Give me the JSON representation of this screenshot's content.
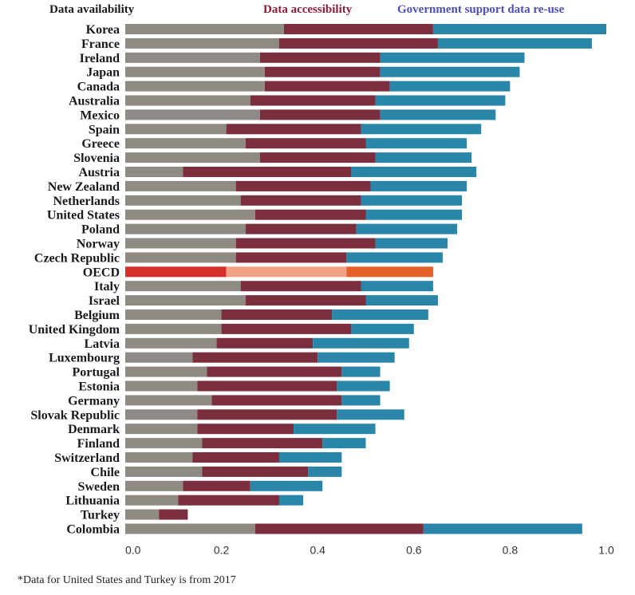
{
  "chart_data": {
    "type": "bar",
    "orientation": "horizontal",
    "stacked": true,
    "categories": [
      "Korea",
      "France",
      "Ireland",
      "Japan",
      "Canada",
      "Australia",
      "Mexico",
      "Spain",
      "Greece",
      "Slovenia",
      "Austria",
      "New Zealand",
      "Netherlands",
      "United States",
      "Poland",
      "Norway",
      "Czech Republic",
      "OECD",
      "Italy",
      "Israel",
      "Belgium",
      "United Kingdom",
      "Latvia",
      "Luxembourg",
      "Portugal",
      "Estonia",
      "Germany",
      "Slovak Republic",
      "Denmark",
      "Finland",
      "Switzerland",
      "Chile",
      "Sweden",
      "Lithuania",
      "Turkey",
      "Colombia"
    ],
    "series": [
      {
        "name": "Data availability",
        "color": "#8f8a83",
        "values": [
          0.33,
          0.32,
          0.28,
          0.29,
          0.29,
          0.26,
          0.28,
          0.21,
          0.25,
          0.28,
          0.12,
          0.23,
          0.24,
          0.27,
          0.25,
          0.23,
          0.23,
          0.21,
          0.24,
          0.25,
          0.2,
          0.2,
          0.19,
          0.14,
          0.17,
          0.15,
          0.18,
          0.15,
          0.15,
          0.16,
          0.14,
          0.16,
          0.12,
          0.11,
          0.07,
          0.27
        ]
      },
      {
        "name": "Data accessibility",
        "color": "#7b2f3e",
        "values": [
          0.31,
          0.33,
          0.25,
          0.24,
          0.26,
          0.26,
          0.25,
          0.28,
          0.25,
          0.24,
          0.35,
          0.28,
          0.25,
          0.23,
          0.23,
          0.29,
          0.23,
          0.25,
          0.25,
          0.25,
          0.23,
          0.27,
          0.2,
          0.26,
          0.28,
          0.29,
          0.27,
          0.29,
          0.2,
          0.25,
          0.18,
          0.22,
          0.14,
          0.21,
          0.06,
          0.35
        ]
      },
      {
        "name": "Government support data re-use",
        "color": "#2a86a8",
        "values": [
          0.36,
          0.32,
          0.3,
          0.29,
          0.25,
          0.27,
          0.24,
          0.25,
          0.21,
          0.2,
          0.26,
          0.2,
          0.21,
          0.2,
          0.21,
          0.15,
          0.2,
          0.18,
          0.15,
          0.15,
          0.2,
          0.13,
          0.2,
          0.16,
          0.08,
          0.11,
          0.08,
          0.14,
          0.17,
          0.09,
          0.13,
          0.07,
          0.15,
          0.05,
          0.0,
          0.33
        ]
      }
    ],
    "highlight": {
      "category": "OECD",
      "colors": [
        "#d72f2b",
        "#f2a283",
        "#e4622a"
      ]
    },
    "xlim": [
      0,
      1.0
    ],
    "xticks": [
      "0.0",
      "0.2",
      "0.4",
      "0.6",
      "0.8",
      "1.0"
    ],
    "legend_position": "top",
    "grid": false,
    "xlabel": "",
    "ylabel": ""
  },
  "legend": {
    "items": [
      {
        "label": "Data   availability",
        "color": "#1a1a1a"
      },
      {
        "label": "Data accessibility",
        "color": "#8b1e36"
      },
      {
        "label": "Government support data re-use",
        "color": "#4b4fb5"
      }
    ]
  },
  "footnote": "*Data for United States and Turkey is from 2017"
}
